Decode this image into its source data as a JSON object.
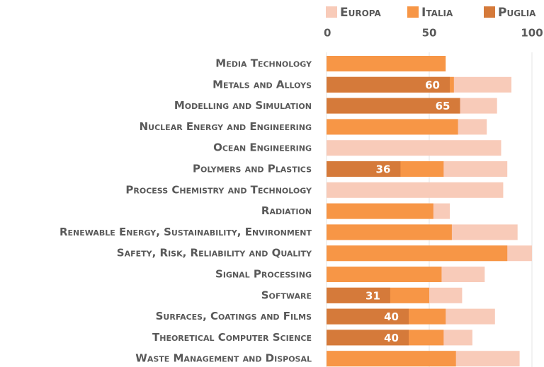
{
  "chart_data": {
    "type": "bar",
    "orientation": "horizontal",
    "overlap": true,
    "categories": [
      "Media Technology",
      "Metals and Alloys",
      "Modelling and Simulation",
      "Nuclear Energy and Engineering",
      "Ocean Engineering",
      "Polymers and Plastics",
      "Process Chemistry and Technology",
      "Radiation",
      "Renewable Energy, Sustainability, Environment",
      "Safety, Risk, Reliability and Quality",
      "Signal Processing",
      "Software",
      "Surfaces, Coatings and Films",
      "Theoretical Computer Science",
      "Waste Management and Disposal"
    ],
    "series": [
      {
        "name": "Europa",
        "color": "#f8cbb9",
        "values": [
          null,
          90,
          83,
          78,
          85,
          88,
          86,
          60,
          93,
          100,
          77,
          66,
          82,
          71,
          94
        ]
      },
      {
        "name": "Italia",
        "color": "#f79646",
        "values": [
          58,
          62,
          null,
          64,
          null,
          57,
          null,
          52,
          61,
          88,
          56,
          50,
          58,
          57,
          63
        ]
      },
      {
        "name": "Puglia",
        "color": "#d57a3a",
        "values": [
          null,
          60,
          65,
          null,
          null,
          36,
          null,
          null,
          null,
          null,
          null,
          31,
          40,
          40,
          null
        ]
      }
    ],
    "data_labels_series": "Puglia",
    "xlim": [
      0,
      100
    ],
    "xticks": [
      0,
      50,
      100
    ],
    "grid": true,
    "legend": "top"
  }
}
